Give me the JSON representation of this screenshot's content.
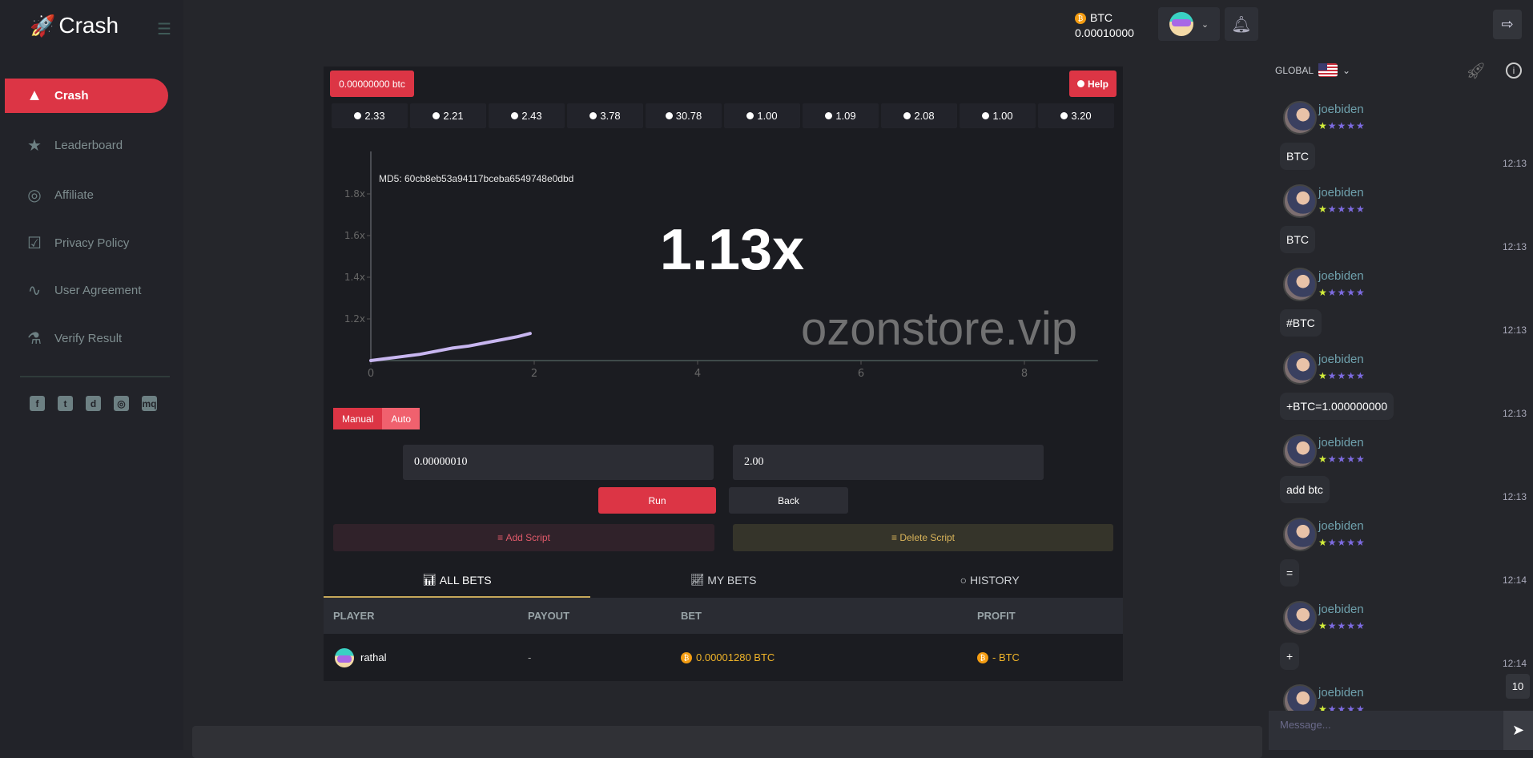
{
  "brand": {
    "name": "Crash",
    "logo_icon": "rocket-emoji"
  },
  "sidebar": {
    "items": [
      {
        "label": "Crash",
        "icon": "rocket-icon",
        "active": true
      },
      {
        "label": "Leaderboard",
        "icon": "star-icon"
      },
      {
        "label": "Affiliate",
        "icon": "target-icon"
      },
      {
        "label": "Privacy Policy",
        "icon": "checkbox-icon"
      },
      {
        "label": "User Agreement",
        "icon": "pulse-icon"
      },
      {
        "label": "Verify Result",
        "icon": "flask-icon"
      }
    ],
    "socials": [
      {
        "name": "facebook",
        "glyph": "f"
      },
      {
        "name": "twitter",
        "glyph": "t"
      },
      {
        "name": "discord",
        "glyph": "d"
      },
      {
        "name": "dribbble",
        "glyph": "◎"
      },
      {
        "name": "meetup",
        "glyph": "mq"
      }
    ]
  },
  "header": {
    "currency": "BTC",
    "balance": "0.00010000"
  },
  "game": {
    "bet_badge": "0.00000000 btc",
    "help_label": "Help",
    "history": [
      "2.33",
      "2.21",
      "2.43",
      "3.78",
      "30.78",
      "1.00",
      "1.09",
      "2.08",
      "1.00",
      "3.20"
    ],
    "multiplier": "1.13x",
    "md5": "MD5: 60cb8eb53a94117bceba6549748e0dbd",
    "modes": {
      "manual": "Manual",
      "auto": "Auto"
    },
    "bet_amount": "0.00000010",
    "cashout": "2.00",
    "run_label": "Run",
    "back_label": "Back",
    "add_script": "Add Script",
    "delete_script": "Delete Script"
  },
  "chart_data": {
    "type": "line",
    "xlim": [
      0,
      9
    ],
    "ylim": [
      1.0,
      1.9
    ],
    "x_ticks": [
      "0",
      "2",
      "4",
      "6",
      "8"
    ],
    "y_ticks": [
      "1.2x",
      "1.4x",
      "1.6x",
      "1.8x"
    ],
    "x": [
      0,
      0.2,
      0.4,
      0.6,
      0.8,
      1.0,
      1.2,
      1.4,
      1.6,
      1.8,
      1.95
    ],
    "y": [
      1.0,
      1.01,
      1.02,
      1.03,
      1.045,
      1.06,
      1.07,
      1.085,
      1.1,
      1.115,
      1.13
    ],
    "color": "#c8b6f0"
  },
  "bets": {
    "tabs": [
      "ALL BETS",
      "MY BETS",
      "HISTORY"
    ],
    "columns": [
      "PLAYER",
      "PAYOUT",
      "BET",
      "PROFIT"
    ],
    "rows": [
      {
        "player": "rathal",
        "payout": "-",
        "bet": "0.00001280 BTC",
        "profit": "- BTC"
      }
    ]
  },
  "chat": {
    "channel": "GLOBAL",
    "messages": [
      {
        "user": "joebiden",
        "text": "BTC",
        "time": "12:13"
      },
      {
        "user": "joebiden",
        "text": "BTC",
        "time": "12:13"
      },
      {
        "user": "joebiden",
        "text": "#BTC",
        "time": "12:13"
      },
      {
        "user": "joebiden",
        "text": "+BTC=1.000000000",
        "time": "12:13"
      },
      {
        "user": "joebiden",
        "text": "add btc",
        "time": "12:13"
      },
      {
        "user": "joebiden",
        "text": "=",
        "time": "12:14"
      },
      {
        "user": "joebiden",
        "text": "+",
        "time": "12:14"
      },
      {
        "user": "joebiden",
        "text": "",
        "time": ""
      }
    ],
    "unread": "10",
    "placeholder": "Message..."
  },
  "watermark": "ozonstore.vip",
  "colors": {
    "accent": "#dc3545",
    "gold": "#f0b429",
    "stars": "#7d6be0"
  }
}
